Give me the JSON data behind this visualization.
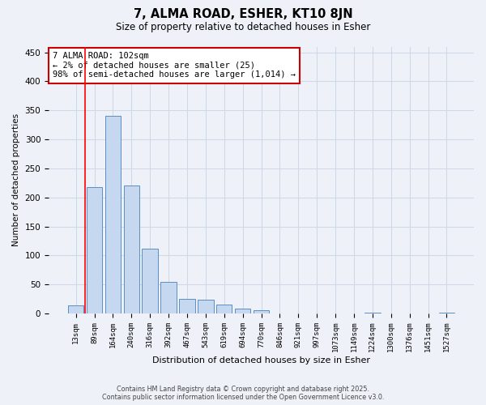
{
  "title": "7, ALMA ROAD, ESHER, KT10 8JN",
  "subtitle": "Size of property relative to detached houses in Esher",
  "xlabel": "Distribution of detached houses by size in Esher",
  "ylabel": "Number of detached properties",
  "categories": [
    "13sqm",
    "89sqm",
    "164sqm",
    "240sqm",
    "316sqm",
    "392sqm",
    "467sqm",
    "543sqm",
    "619sqm",
    "694sqm",
    "770sqm",
    "846sqm",
    "921sqm",
    "997sqm",
    "1073sqm",
    "1149sqm",
    "1224sqm",
    "1300sqm",
    "1376sqm",
    "1451sqm",
    "1527sqm"
  ],
  "values": [
    14,
    218,
    340,
    220,
    112,
    55,
    25,
    24,
    16,
    8,
    6,
    0,
    0,
    0,
    0,
    0,
    1,
    0,
    0,
    0,
    2
  ],
  "bar_color": "#c5d8f0",
  "bar_edge_color": "#5a8fc4",
  "grid_color": "#d0d8e8",
  "bg_color": "#eef2f8",
  "red_line_x": 0.5,
  "annotation_text": "7 ALMA ROAD: 102sqm\n← 2% of detached houses are smaller (25)\n98% of semi-detached houses are larger (1,014) →",
  "annotation_box_color": "#ffffff",
  "annotation_box_edge_color": "#cc0000",
  "ylim": [
    0,
    460
  ],
  "yticks": [
    0,
    50,
    100,
    150,
    200,
    250,
    300,
    350,
    400,
    450
  ],
  "footer_line1": "Contains HM Land Registry data © Crown copyright and database right 2025.",
  "footer_line2": "Contains public sector information licensed under the Open Government Licence v3.0."
}
